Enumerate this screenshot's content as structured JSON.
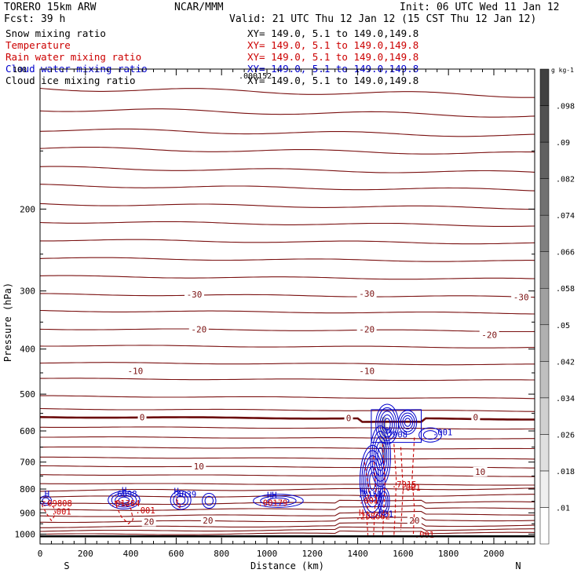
{
  "header": {
    "model": "TORERO  15km ARW",
    "center": "NCAR/MMM",
    "init": "Init: 06 UTC Wed 11 Jan 12",
    "fcst": "Fcst:   39 h",
    "valid": "Valid: 21 UTC Thu 12 Jan 12 (15 CST Thu 12 Jan 12)"
  },
  "fields": [
    {
      "name": "Snow mixing ratio",
      "xy": "XY= 149.0,  5.1 to 149.0,149.8",
      "color": "#000000"
    },
    {
      "name": "Temperature",
      "xy": "XY= 149.0,  5.1 to 149.0,149.8",
      "color": "#cc0000"
    },
    {
      "name": "Rain water mixing ratio",
      "xy": "XY= 149.0,  5.1 to 149.0,149.8",
      "color": "#cc0000"
    },
    {
      "name": "Cloud water mixing ratio",
      "xy": "XY= 149.0,  5.1 to 149.0,149.8",
      "color": "#0000cc"
    },
    {
      "name": "Cloud ice mixing ratio",
      "xy": "XY= 149.0,  5.1 to 149.0,149.8",
      "color": "#000000"
    }
  ],
  "overlap_labels": {
    "left": "100",
    "center": ".000152"
  },
  "colors": {
    "temperature": "#7a1010",
    "zero_isotherm": "#6b0a0a",
    "rain": "#cc0000",
    "cloud_water": "#0000cc",
    "snow_shade": "#b0b0b0"
  },
  "chart_data": {
    "type": "cross-section contour",
    "xlabel": "Distance (km)",
    "ylabel": "Pressure (hPa)",
    "xlim": [
      0,
      2180
    ],
    "ylim": [
      1050,
      100
    ],
    "xticks": [
      0,
      200,
      400,
      600,
      800,
      1000,
      1200,
      1400,
      1600,
      1800,
      2000
    ],
    "yticks": [
      200,
      300,
      400,
      500,
      600,
      700,
      800,
      900,
      1000
    ],
    "left_end": "S",
    "right_end": "N",
    "ground_pressure": 1011,
    "temperature_contours": {
      "levels_labeled": [
        -30,
        -20,
        -10,
        0,
        10,
        20
      ],
      "labels": [
        {
          "text": "-30",
          "x": 680,
          "p": 305
        },
        {
          "text": "-30",
          "x": 1440,
          "p": 304
        },
        {
          "text": "-30",
          "x": 2120,
          "p": 309
        },
        {
          "text": "-20",
          "x": 700,
          "p": 363
        },
        {
          "text": "-20",
          "x": 1440,
          "p": 363
        },
        {
          "text": "-20",
          "x": 1980,
          "p": 373
        },
        {
          "text": "-10",
          "x": 420,
          "p": 446
        },
        {
          "text": "-10",
          "x": 1440,
          "p": 446
        },
        {
          "text": "0",
          "x": 450,
          "p": 560
        },
        {
          "text": "0",
          "x": 1360,
          "p": 563
        },
        {
          "text": "0",
          "x": 1920,
          "p": 560
        },
        {
          "text": "10",
          "x": 700,
          "p": 714
        },
        {
          "text": "10",
          "x": 1940,
          "p": 734
        },
        {
          "text": "20",
          "x": 480,
          "p": 940
        },
        {
          "text": "20",
          "x": 740,
          "p": 934
        },
        {
          "text": "20",
          "x": 1650,
          "p": 934
        }
      ]
    },
    "cloud_water_labels": [
      {
        "text": "H",
        "x": 20,
        "p": 818
      },
      {
        "text": "H",
        "x": 360,
        "p": 805
      },
      {
        "text": "6698",
        "x": 340,
        "p": 818
      },
      {
        "text": "H",
        "x": 590,
        "p": 808
      },
      {
        "text": ".4039",
        "x": 580,
        "p": 821
      },
      {
        "text": "HH",
        "x": 1000,
        "p": 824
      },
      {
        "text": "H",
        "x": 1525,
        "p": 598
      },
      {
        "text": ".7908",
        "x": 1510,
        "p": 610
      },
      {
        "text": ".001",
        "x": 1730,
        "p": 603
      },
      {
        "text": "H",
        "x": 1410,
        "p": 807
      },
      {
        "text": ".7151",
        "x": 1400,
        "p": 821
      },
      {
        "text": ".001",
        "x": 1470,
        "p": 904
      }
    ],
    "rain_labels": [
      {
        "text": ".09808",
        "x": 10,
        "p": 858
      },
      {
        "text": ".001",
        "x": 50,
        "p": 894
      },
      {
        "text": ".01384",
        "x": 310,
        "p": 858
      },
      {
        "text": ".001",
        "x": 420,
        "p": 889
      },
      {
        "text": ".00179",
        "x": 960,
        "p": 856
      },
      {
        "text": ".7915",
        "x": 1550,
        "p": 782
      },
      {
        "text": ".001",
        "x": 1590,
        "p": 793
      },
      {
        "text": ".001",
        "x": 1405,
        "p": 847
      },
      {
        "text": "H",
        "x": 1405,
        "p": 899
      },
      {
        "text": ".208662",
        "x": 1390,
        "p": 914
      },
      {
        "text": ".001",
        "x": 1650,
        "p": 1003
      }
    ],
    "colorbar": {
      "units": "g kg-1",
      "levels": [
        ".01",
        ".018",
        ".026",
        ".034",
        ".042",
        ".05",
        ".058",
        ".066",
        ".074",
        ".082",
        ".09",
        ".098"
      ]
    }
  }
}
